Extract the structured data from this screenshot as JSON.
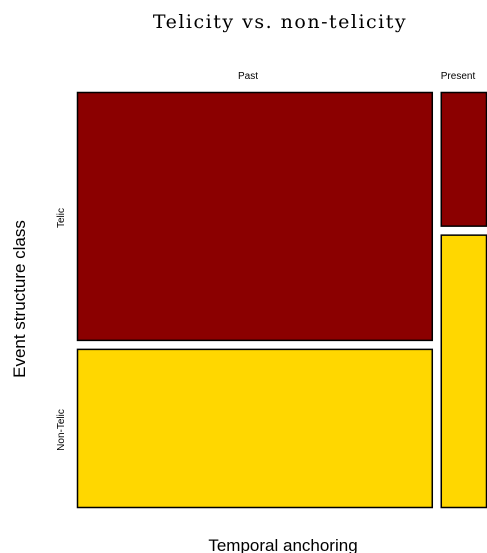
{
  "chart_data": {
    "type": "mosaic",
    "title": "Telicity vs. non-telicity",
    "xlabel": "Temporal anchoring",
    "ylabel": "Event structure class",
    "columns": [
      "Past",
      "Present"
    ],
    "rows": [
      "Telic",
      "Non-Telic"
    ],
    "column_proportions": [
      0.885,
      0.115
    ],
    "row_proportions_within_column": {
      "Past": [
        0.61,
        0.39
      ],
      "Present": [
        0.33,
        0.67
      ]
    },
    "colors": {
      "Telic": "#8b0000",
      "Non-Telic": "#ffd700"
    }
  }
}
